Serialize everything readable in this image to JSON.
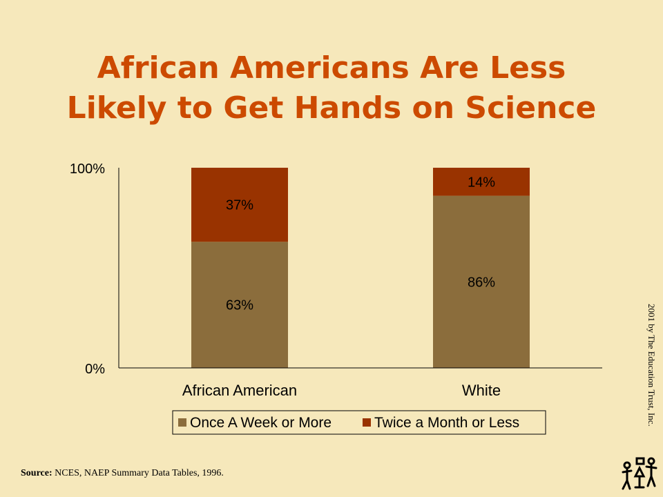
{
  "title": {
    "line1": "African Americans Are Less",
    "line2": "Likely to Get Hands on Science"
  },
  "chart_data": {
    "type": "bar",
    "stacked": true,
    "categories": [
      "African American",
      "White"
    ],
    "series": [
      {
        "name": "Once A Week or More",
        "values": [
          63,
          86
        ],
        "labels": [
          "63%",
          "86%"
        ],
        "color": "#8b6d3c"
      },
      {
        "name": "Twice a Month or Less",
        "values": [
          37,
          14
        ],
        "labels": [
          "37%",
          "14%"
        ],
        "color": "#993300"
      }
    ],
    "ylim": [
      0,
      100
    ],
    "yticks": [
      "0%",
      "100%"
    ],
    "legend_position": "bottom",
    "grid": false
  },
  "source": {
    "label": "Source:",
    "text": "NCES, NAEP Summary Data Tables, 1996."
  },
  "copyright": "2001 by The Education Trust, Inc.",
  "logo_icon": "figures-logo-icon"
}
